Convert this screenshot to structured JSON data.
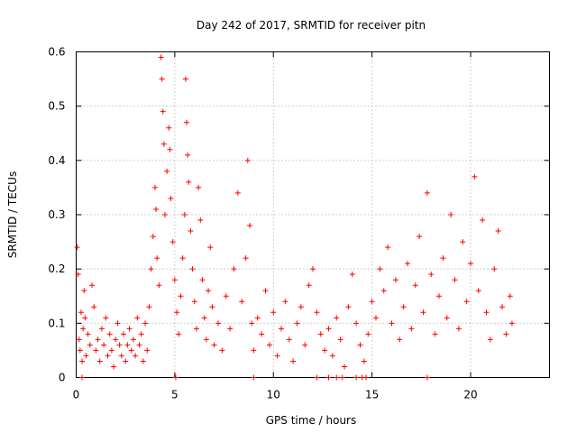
{
  "chart_data": {
    "type": "scatter",
    "title": "Day 242 of 2017, SRMTID for receiver pitn",
    "xlabel": "GPS time / hours",
    "ylabel": "SRMTID / TECUs",
    "xlim": [
      0,
      24
    ],
    "ylim": [
      0,
      0.6
    ],
    "xticks": [
      0,
      5,
      10,
      15,
      20
    ],
    "yticks": [
      0,
      0.1,
      0.2,
      0.3,
      0.4,
      0.5,
      0.6
    ],
    "xtick_labels": [
      "0",
      "5",
      "10",
      "15",
      "20"
    ],
    "ytick_labels": [
      "0",
      "0.1",
      "0.2",
      "0.3",
      "0.4",
      "0.5",
      "0.6"
    ],
    "grid": true,
    "marker": "plus",
    "color": "#ff0000",
    "series": [
      {
        "name": "SRMTID",
        "points": [
          [
            0.05,
            0.24
          ],
          [
            0.1,
            0.19
          ],
          [
            0.15,
            0.07
          ],
          [
            0.2,
            0.05
          ],
          [
            0.25,
            0.12
          ],
          [
            0.3,
            0.03
          ],
          [
            0.35,
            0.09
          ],
          [
            0.4,
            0.16
          ],
          [
            0.45,
            0.11
          ],
          [
            0.5,
            0.04
          ],
          [
            0.6,
            0.08
          ],
          [
            0.7,
            0.06
          ],
          [
            0.8,
            0.17
          ],
          [
            0.9,
            0.13
          ],
          [
            1.0,
            0.05
          ],
          [
            1.1,
            0.07
          ],
          [
            1.2,
            0.03
          ],
          [
            1.3,
            0.09
          ],
          [
            1.4,
            0.06
          ],
          [
            1.5,
            0.11
          ],
          [
            1.6,
            0.04
          ],
          [
            1.7,
            0.08
          ],
          [
            1.8,
            0.05
          ],
          [
            1.9,
            0.02
          ],
          [
            2.0,
            0.07
          ],
          [
            2.1,
            0.1
          ],
          [
            2.2,
            0.06
          ],
          [
            2.3,
            0.04
          ],
          [
            2.4,
            0.08
          ],
          [
            2.5,
            0.03
          ],
          [
            2.6,
            0.06
          ],
          [
            2.7,
            0.09
          ],
          [
            2.8,
            0.05
          ],
          [
            2.9,
            0.07
          ],
          [
            3.0,
            0.04
          ],
          [
            3.1,
            0.11
          ],
          [
            3.2,
            0.06
          ],
          [
            3.3,
            0.08
          ],
          [
            3.4,
            0.03
          ],
          [
            3.5,
            0.1
          ],
          [
            3.6,
            0.05
          ],
          [
            3.7,
            0.13
          ],
          [
            3.8,
            0.2
          ],
          [
            3.9,
            0.26
          ],
          [
            4.0,
            0.35
          ],
          [
            4.05,
            0.31
          ],
          [
            4.1,
            0.22
          ],
          [
            4.2,
            0.17
          ],
          [
            4.3,
            0.59
          ],
          [
            4.35,
            0.55
          ],
          [
            4.4,
            0.49
          ],
          [
            4.45,
            0.43
          ],
          [
            4.5,
            0.3
          ],
          [
            4.6,
            0.38
          ],
          [
            4.7,
            0.46
          ],
          [
            4.75,
            0.42
          ],
          [
            4.8,
            0.33
          ],
          [
            4.9,
            0.25
          ],
          [
            5.0,
            0.18
          ],
          [
            5.1,
            0.12
          ],
          [
            5.2,
            0.08
          ],
          [
            5.3,
            0.15
          ],
          [
            5.4,
            0.22
          ],
          [
            5.5,
            0.3
          ],
          [
            5.55,
            0.55
          ],
          [
            5.6,
            0.47
          ],
          [
            5.65,
            0.41
          ],
          [
            5.7,
            0.36
          ],
          [
            5.8,
            0.27
          ],
          [
            5.9,
            0.2
          ],
          [
            6.0,
            0.14
          ],
          [
            6.1,
            0.09
          ],
          [
            6.2,
            0.35
          ],
          [
            6.3,
            0.29
          ],
          [
            6.4,
            0.18
          ],
          [
            6.5,
            0.11
          ],
          [
            6.6,
            0.07
          ],
          [
            6.7,
            0.16
          ],
          [
            6.8,
            0.24
          ],
          [
            6.9,
            0.13
          ],
          [
            7.0,
            0.06
          ],
          [
            7.2,
            0.1
          ],
          [
            7.4,
            0.05
          ],
          [
            7.6,
            0.15
          ],
          [
            7.8,
            0.09
          ],
          [
            8.0,
            0.2
          ],
          [
            8.2,
            0.34
          ],
          [
            8.4,
            0.14
          ],
          [
            8.6,
            0.22
          ],
          [
            8.7,
            0.4
          ],
          [
            8.8,
            0.28
          ],
          [
            8.9,
            0.1
          ],
          [
            9.0,
            0.05
          ],
          [
            9.2,
            0.11
          ],
          [
            9.4,
            0.08
          ],
          [
            9.6,
            0.16
          ],
          [
            9.8,
            0.06
          ],
          [
            10.0,
            0.12
          ],
          [
            10.2,
            0.04
          ],
          [
            10.4,
            0.09
          ],
          [
            10.6,
            0.14
          ],
          [
            10.8,
            0.07
          ],
          [
            11.0,
            0.03
          ],
          [
            11.2,
            0.1
          ],
          [
            11.4,
            0.13
          ],
          [
            11.6,
            0.06
          ],
          [
            11.8,
            0.17
          ],
          [
            12.0,
            0.2
          ],
          [
            12.2,
            0.12
          ],
          [
            12.4,
            0.08
          ],
          [
            12.6,
            0.05
          ],
          [
            12.8,
            0.09
          ],
          [
            13.0,
            0.04
          ],
          [
            13.2,
            0.11
          ],
          [
            13.4,
            0.07
          ],
          [
            13.6,
            0.02
          ],
          [
            13.8,
            0.13
          ],
          [
            14.0,
            0.19
          ],
          [
            14.2,
            0.1
          ],
          [
            14.4,
            0.06
          ],
          [
            14.6,
            0.03
          ],
          [
            14.8,
            0.08
          ],
          [
            15.0,
            0.14
          ],
          [
            15.2,
            0.11
          ],
          [
            15.4,
            0.2
          ],
          [
            15.6,
            0.16
          ],
          [
            15.8,
            0.24
          ],
          [
            16.0,
            0.1
          ],
          [
            16.2,
            0.18
          ],
          [
            16.4,
            0.07
          ],
          [
            16.6,
            0.13
          ],
          [
            16.8,
            0.21
          ],
          [
            17.0,
            0.09
          ],
          [
            17.2,
            0.17
          ],
          [
            17.4,
            0.26
          ],
          [
            17.6,
            0.12
          ],
          [
            17.8,
            0.34
          ],
          [
            18.0,
            0.19
          ],
          [
            18.2,
            0.08
          ],
          [
            18.4,
            0.15
          ],
          [
            18.6,
            0.22
          ],
          [
            18.8,
            0.11
          ],
          [
            19.0,
            0.3
          ],
          [
            19.2,
            0.18
          ],
          [
            19.4,
            0.09
          ],
          [
            19.6,
            0.25
          ],
          [
            19.8,
            0.14
          ],
          [
            20.0,
            0.21
          ],
          [
            20.2,
            0.37
          ],
          [
            20.4,
            0.16
          ],
          [
            20.6,
            0.29
          ],
          [
            20.8,
            0.12
          ],
          [
            21.0,
            0.07
          ],
          [
            21.2,
            0.2
          ],
          [
            21.4,
            0.27
          ],
          [
            21.6,
            0.13
          ],
          [
            21.8,
            0.08
          ],
          [
            22.0,
            0.15
          ],
          [
            22.1,
            0.1
          ],
          [
            0.3,
            0.0
          ],
          [
            5.05,
            0.0
          ],
          [
            9.0,
            0.0
          ],
          [
            12.2,
            0.0
          ],
          [
            12.8,
            0.0
          ],
          [
            13.2,
            0.0
          ],
          [
            13.5,
            0.0
          ],
          [
            14.2,
            0.0
          ],
          [
            14.5,
            0.0
          ],
          [
            14.7,
            0.0
          ],
          [
            17.8,
            0.0
          ]
        ]
      }
    ]
  }
}
